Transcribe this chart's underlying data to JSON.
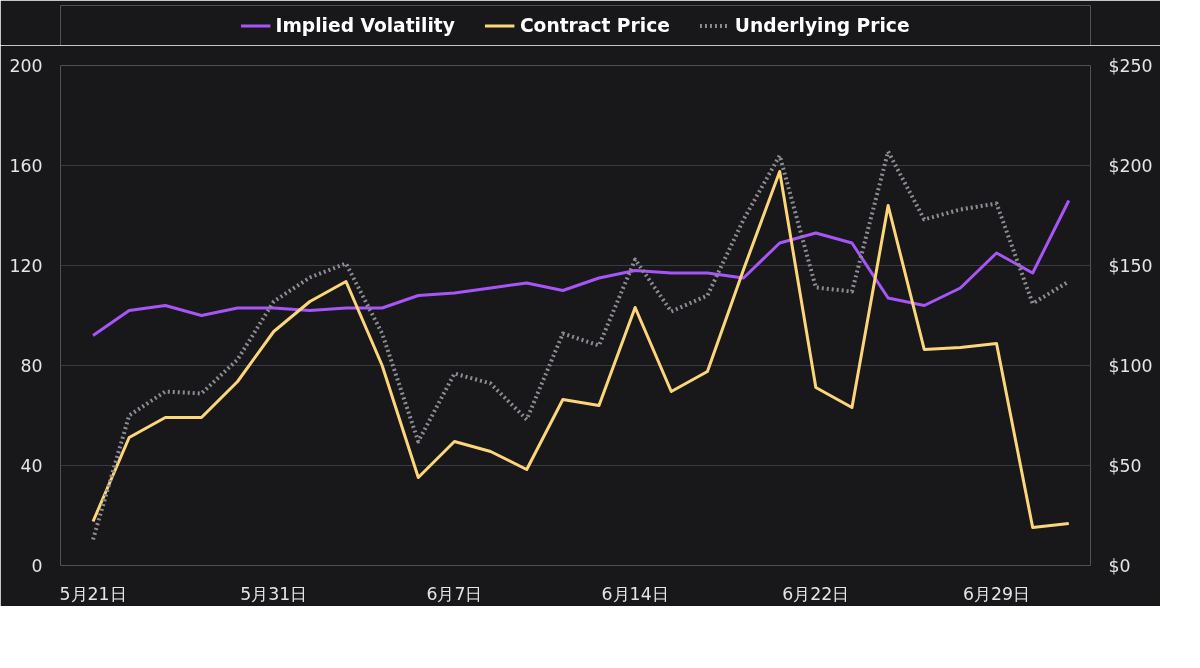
{
  "chart_data": {
    "type": "line",
    "categories": [
      "5月21日",
      null,
      null,
      null,
      null,
      "5月31日",
      null,
      null,
      null,
      null,
      "6月7日",
      null,
      null,
      null,
      null,
      "6月14日",
      null,
      null,
      null,
      null,
      "6月22日",
      null,
      null,
      null,
      null,
      "6月29日",
      null,
      null
    ],
    "series": [
      {
        "name": "Implied Volatility",
        "color": "#a855f7",
        "line_style": "solid",
        "values": [
          92,
          102,
          104,
          100,
          103,
          103,
          102,
          103,
          103,
          108,
          109,
          111,
          113,
          110,
          115,
          118,
          117,
          117,
          115,
          129,
          133,
          129,
          107,
          104,
          111,
          125,
          117,
          146
        ]
      },
      {
        "name": "Contract Price",
        "color": "#fcd67a",
        "axis": "y2",
        "line_style": "solid",
        "values": [
          22,
          64,
          74,
          74,
          92,
          117,
          132,
          142,
          100,
          44,
          62,
          57,
          48,
          83,
          80,
          129,
          87,
          97,
          148,
          197,
          89,
          79,
          180,
          108,
          109,
          111,
          19,
          21
        ]
      },
      {
        "name": "Underlying Price",
        "color": "#8a8d93",
        "axis": "y2",
        "line_style": "dotted",
        "values": [
          13,
          75,
          87,
          86,
          103,
          132,
          144,
          151,
          116,
          62,
          96,
          91,
          73,
          116,
          110,
          153,
          127,
          135,
          173,
          205,
          139,
          137,
          207,
          173,
          178,
          181,
          131,
          142
        ]
      }
    ],
    "ylim": [
      0,
      200
    ],
    "yticks": [
      0,
      40,
      80,
      120,
      160,
      200
    ],
    "y2lim": [
      0,
      250
    ],
    "y2ticks": [
      {
        "value": 0,
        "label": "$0"
      },
      {
        "value": 50,
        "label": "$50"
      },
      {
        "value": 100,
        "label": "$100"
      },
      {
        "value": 150,
        "label": "$150"
      },
      {
        "value": 200,
        "label": "$200"
      },
      {
        "value": 250,
        "label": "$250"
      }
    ],
    "grid": "y",
    "legend": "top"
  }
}
